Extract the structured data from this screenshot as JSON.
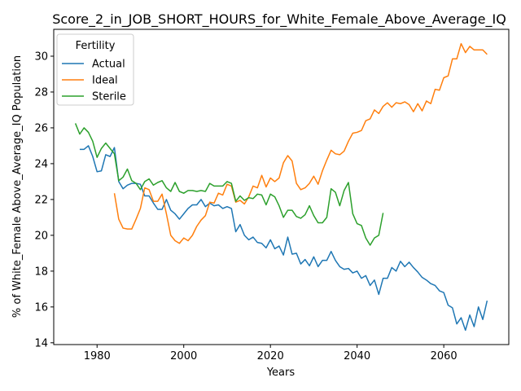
{
  "chart_data": {
    "type": "line",
    "title": "Score_2_in_JOB_SHORT_HOURS_for_White_Female_Above_Average_IQ",
    "xlabel": "Years",
    "ylabel": "% of White_Female Above_Average_IQ Population",
    "xlim": [
      1970,
      2075
    ],
    "ylim": [
      13.9,
      31.5
    ],
    "xticks": [
      1980,
      2000,
      2020,
      2040,
      2060
    ],
    "yticks": [
      14,
      16,
      18,
      20,
      22,
      24,
      26,
      28,
      30
    ],
    "grid": false,
    "legend": {
      "title": "Fertility",
      "placement": "top-left"
    },
    "series": [
      {
        "name": "Actual",
        "color": "#1f77b4",
        "x": [
          1976,
          1977,
          1978,
          1979,
          1980,
          1981,
          1982,
          1983,
          1984,
          1985,
          1986,
          1987,
          1988,
          1989,
          1990,
          1991,
          1992,
          1993,
          1994,
          1995,
          1996,
          1997,
          1998,
          1999,
          2000,
          2001,
          2002,
          2003,
          2004,
          2005,
          2006,
          2007,
          2008,
          2009,
          2010,
          2011,
          2012,
          2013,
          2014,
          2015,
          2016,
          2017,
          2018,
          2019,
          2020,
          2021,
          2022,
          2023,
          2024,
          2025,
          2026,
          2027,
          2028,
          2029,
          2030,
          2031,
          2032,
          2033,
          2034,
          2035,
          2036,
          2037,
          2038,
          2039,
          2040,
          2041,
          2042,
          2043,
          2044,
          2045,
          2046,
          2047,
          2048,
          2049,
          2050,
          2051,
          2052,
          2053,
          2054,
          2055,
          2056,
          2057,
          2058,
          2059,
          2060,
          2061,
          2062,
          2063,
          2064,
          2065,
          2066,
          2067,
          2068,
          2069,
          2070
        ],
        "values": [
          24.8,
          24.8,
          25.0,
          24.4,
          23.55,
          23.6,
          24.5,
          24.4,
          24.9,
          23.0,
          22.6,
          22.8,
          22.9,
          22.9,
          22.85,
          22.2,
          22.2,
          21.8,
          21.45,
          21.45,
          22.0,
          21.4,
          21.2,
          20.9,
          21.2,
          21.5,
          21.7,
          21.7,
          22.0,
          21.6,
          21.8,
          21.65,
          21.7,
          21.5,
          21.6,
          21.5,
          20.2,
          20.6,
          20.0,
          19.75,
          19.9,
          19.6,
          19.55,
          19.3,
          19.75,
          19.25,
          19.4,
          18.9,
          19.9,
          18.95,
          19.0,
          18.4,
          18.65,
          18.3,
          18.8,
          18.25,
          18.6,
          18.6,
          19.1,
          18.6,
          18.25,
          18.1,
          18.15,
          17.9,
          18.0,
          17.6,
          17.75,
          17.2,
          17.5,
          16.7,
          17.6,
          17.6,
          18.2,
          18.0,
          18.55,
          18.25,
          18.5,
          18.2,
          17.95,
          17.65,
          17.5,
          17.3,
          17.2,
          16.9,
          16.8,
          16.1,
          15.95,
          15.05,
          15.4,
          14.7,
          15.55,
          14.9,
          16.0,
          15.3,
          16.35
        ]
      },
      {
        "name": "Ideal",
        "color": "#ff7f0e",
        "x": [
          1984,
          1985,
          1986,
          1987,
          1988,
          1989,
          1990,
          1991,
          1992,
          1993,
          1994,
          1995,
          1996,
          1997,
          1998,
          1999,
          2000,
          2001,
          2002,
          2003,
          2004,
          2005,
          2006,
          2007,
          2008,
          2009,
          2010,
          2011,
          2012,
          2013,
          2014,
          2015,
          2016,
          2017,
          2018,
          2019,
          2020,
          2021,
          2022,
          2023,
          2024,
          2025,
          2026,
          2027,
          2028,
          2029,
          2030,
          2031,
          2032,
          2033,
          2034,
          2035,
          2036,
          2037,
          2038,
          2039,
          2040,
          2041,
          2042,
          2043,
          2044,
          2045,
          2046,
          2047,
          2048,
          2049,
          2050,
          2051,
          2052,
          2053,
          2054,
          2055,
          2056,
          2057,
          2058,
          2059,
          2060,
          2061,
          2062,
          2063,
          2064,
          2065,
          2066,
          2067,
          2068,
          2069,
          2070
        ],
        "values": [
          22.35,
          20.9,
          20.4,
          20.35,
          20.35,
          20.9,
          21.5,
          22.65,
          22.55,
          21.9,
          21.9,
          22.3,
          21.2,
          20.0,
          19.7,
          19.55,
          19.85,
          19.7,
          20.0,
          20.5,
          20.85,
          21.1,
          21.85,
          21.8,
          22.35,
          22.25,
          22.85,
          22.75,
          21.85,
          21.95,
          21.75,
          22.15,
          22.75,
          22.65,
          23.35,
          22.7,
          23.2,
          23.0,
          23.2,
          24.05,
          24.45,
          24.15,
          22.9,
          22.55,
          22.65,
          22.9,
          23.3,
          22.85,
          23.6,
          24.2,
          24.75,
          24.55,
          24.5,
          24.7,
          25.25,
          25.7,
          25.75,
          25.85,
          26.4,
          26.5,
          27.0,
          26.8,
          27.2,
          27.4,
          27.15,
          27.4,
          27.35,
          27.45,
          27.3,
          26.9,
          27.35,
          26.95,
          27.5,
          27.35,
          28.15,
          28.1,
          28.8,
          28.9,
          29.85,
          29.85,
          30.7,
          30.2,
          30.55,
          30.35,
          30.35,
          30.35,
          30.1
        ]
      },
      {
        "name": "Sterile",
        "color": "#2ca02c",
        "x": [
          1975,
          1976,
          1977,
          1978,
          1979,
          1980,
          1981,
          1982,
          1983,
          1984,
          1985,
          1986,
          1987,
          1988,
          1989,
          1990,
          1991,
          1992,
          1993,
          1994,
          1995,
          1996,
          1997,
          1998,
          1999,
          2000,
          2001,
          2002,
          2003,
          2004,
          2005,
          2006,
          2007,
          2008,
          2009,
          2010,
          2011,
          2012,
          2013,
          2014,
          2015,
          2016,
          2017,
          2018,
          2019,
          2020,
          2021,
          2022,
          2023,
          2024,
          2025,
          2026,
          2027,
          2028,
          2029,
          2030,
          2031,
          2032,
          2033,
          2034,
          2035,
          2036,
          2037,
          2038,
          2039,
          2040,
          2041,
          2042,
          2043,
          2044,
          2045,
          2046
        ],
        "values": [
          26.25,
          25.65,
          26.0,
          25.75,
          25.25,
          24.35,
          24.85,
          25.15,
          24.85,
          24.55,
          23.05,
          23.25,
          23.7,
          23.05,
          22.9,
          22.55,
          23.0,
          23.15,
          22.8,
          22.95,
          23.05,
          22.65,
          22.45,
          22.95,
          22.45,
          22.35,
          22.5,
          22.5,
          22.45,
          22.5,
          22.45,
          22.9,
          22.75,
          22.75,
          22.75,
          23.0,
          22.9,
          21.9,
          22.2,
          21.95,
          22.1,
          22.05,
          22.3,
          22.25,
          21.7,
          22.3,
          22.15,
          21.65,
          21.0,
          21.4,
          21.4,
          21.05,
          20.95,
          21.15,
          21.65,
          21.1,
          20.7,
          20.7,
          21.0,
          22.6,
          22.4,
          21.65,
          22.5,
          22.95,
          21.2,
          20.65,
          20.55,
          19.85,
          19.45,
          19.85,
          20.0,
          21.25
        ]
      }
    ]
  }
}
